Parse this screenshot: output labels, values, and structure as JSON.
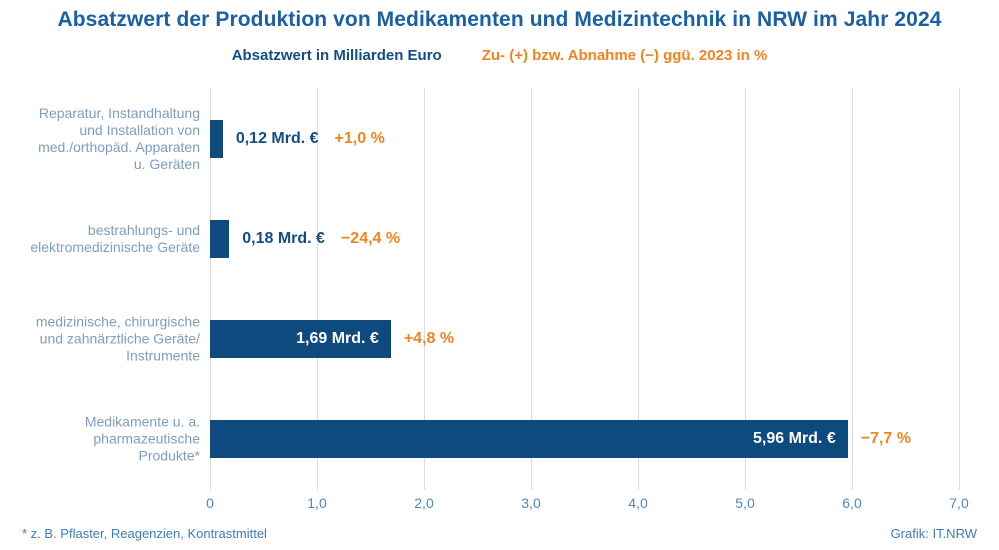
{
  "chart_data": {
    "type": "bar",
    "orientation": "horizontal",
    "title": "Absatzwert der Produktion von Medikamenten und Medizintechnik in NRW im Jahr 2024",
    "legend": [
      {
        "label": "Absatzwert in Milliarden Euro",
        "color": "#134d84"
      },
      {
        "label": "Zu- (+) bzw. Abnahme (−) ggü. 2023 in %",
        "color": "#f0841f"
      }
    ],
    "rows": [
      {
        "label_lines": [
          "Reparatur, Instandhaltung",
          "und Installation von",
          "med./orthopäd. Apparaten",
          "u. Geräten"
        ],
        "value": 0.12,
        "value_label": "0,12 Mrd. €",
        "change_label": "+1,0 %",
        "label_inside": false
      },
      {
        "label_lines": [
          "bestrahlungs- und",
          "elektromedizinische Geräte"
        ],
        "value": 0.18,
        "value_label": "0,18 Mrd. €",
        "change_label": "−24,4 %",
        "label_inside": false
      },
      {
        "label_lines": [
          "medizinische, chirurgische",
          "und zahnärztliche Geräte/",
          "Instrumente"
        ],
        "value": 1.69,
        "value_label": "1,69 Mrd. €",
        "change_label": "+4,8 %",
        "label_inside": true
      },
      {
        "label_lines": [
          "Medikamente u. a.",
          "pharmazeutische",
          "Produkte*"
        ],
        "value": 5.96,
        "value_label": "5,96 Mrd. €",
        "change_label": "−7,7 %",
        "label_inside": true
      }
    ],
    "xlabel": "",
    "ylabel": "",
    "xlim": [
      0,
      7
    ],
    "xticks": [
      "0",
      "1,0",
      "2,0",
      "3,0",
      "4,0",
      "5,0",
      "6,0",
      "7,0"
    ],
    "grid": true,
    "legend_position": "top",
    "footnote": "*  z. B. Pflaster, Reagenzien, Kontrastmittel",
    "credit": "Grafik: IT.NRW",
    "colors": {
      "bar": "#0e4a7d",
      "accent_orange": "#f0841f",
      "title_blue": "#1b5fa6",
      "value_navy": "#134d84",
      "category_label_blue": "#7e9dc2",
      "tick_blue": "#5287bd",
      "footnote_blue": "#3c7cbe",
      "gridline_gray": "#dcdcdc",
      "bar_inner_text": "#ffffff"
    }
  }
}
